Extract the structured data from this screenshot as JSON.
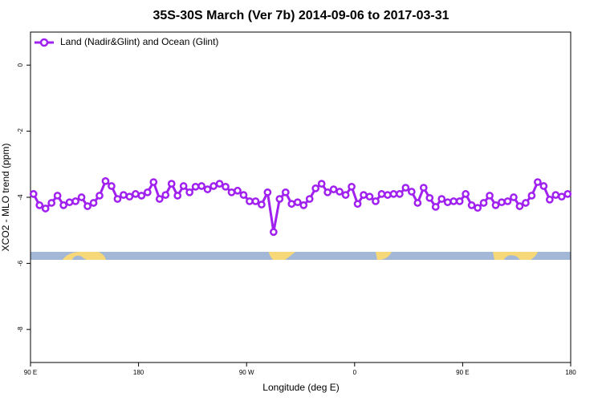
{
  "chart_data": {
    "type": "line",
    "title": "35S-30S March (Ver 7b)   2014-09-06 to 2017-03-31",
    "xlabel": "Longitude (deg E)",
    "ylabel": "XCO2 - MLO trend (ppm)",
    "legend": "topleft",
    "xlim": [
      90,
      540
    ],
    "ylim": [
      -9,
      1
    ],
    "xticks": [
      {
        "value": 90,
        "label": "90 E"
      },
      {
        "value": 180,
        "label": "180"
      },
      {
        "value": 270,
        "label": "90 W"
      },
      {
        "value": 360,
        "label": "0"
      },
      {
        "value": 450,
        "label": "90 E"
      },
      {
        "value": 540,
        "label": "180"
      }
    ],
    "yticks": [
      0,
      -2,
      -4,
      -6,
      -8
    ],
    "x": [
      92.5,
      97.5,
      102.5,
      107.5,
      112.5,
      117.5,
      122.5,
      127.5,
      132.5,
      137.5,
      142.5,
      147.5,
      152.5,
      157.5,
      162.5,
      167.5,
      172.5,
      177.5,
      182.5,
      187.5,
      192.5,
      197.5,
      202.5,
      207.5,
      212.5,
      217.5,
      222.5,
      227.5,
      232.5,
      237.5,
      242.5,
      247.5,
      252.5,
      257.5,
      262.5,
      267.5,
      272.5,
      277.5,
      282.5,
      287.5,
      292.5,
      297.5,
      302.5,
      307.5,
      312.5,
      317.5,
      322.5,
      327.5,
      332.5,
      337.5,
      342.5,
      347.5,
      352.5,
      357.5,
      362.5,
      367.5,
      372.5,
      377.5,
      382.5,
      387.5,
      392.5,
      397.5,
      402.5,
      407.5,
      412.5,
      417.5,
      422.5,
      427.5,
      432.5,
      437.5,
      442.5,
      447.5,
      452.5,
      457.5,
      462.5,
      467.5,
      472.5,
      477.5,
      482.5,
      487.5,
      492.5,
      497.5,
      502.5,
      507.5,
      512.5,
      517.5,
      522.5,
      527.5,
      532.5,
      537.5
    ],
    "series": [
      {
        "name": "Land (Nadir&Glint) and Ocean (Glint)",
        "color": "#a020f0",
        "values": [
          -3.9,
          -4.24,
          -4.34,
          -4.17,
          -3.95,
          -4.24,
          -4.15,
          -4.12,
          -4.0,
          -4.27,
          -4.17,
          -3.95,
          -3.51,
          -3.66,
          -4.05,
          -3.93,
          -3.98,
          -3.9,
          -3.95,
          -3.85,
          -3.54,
          -4.05,
          -3.93,
          -3.59,
          -3.95,
          -3.66,
          -3.85,
          -3.68,
          -3.66,
          -3.76,
          -3.66,
          -3.59,
          -3.68,
          -3.85,
          -3.8,
          -3.93,
          -4.12,
          -4.12,
          -4.22,
          -3.85,
          -5.05,
          -4.05,
          -3.85,
          -4.2,
          -4.15,
          -4.24,
          -4.05,
          -3.73,
          -3.59,
          -3.85,
          -3.76,
          -3.83,
          -3.93,
          -3.68,
          -4.2,
          -3.93,
          -3.98,
          -4.12,
          -3.9,
          -3.93,
          -3.9,
          -3.9,
          -3.71,
          -3.83,
          -4.17,
          -3.71,
          -4.02,
          -4.29,
          -4.05,
          -4.15,
          -4.12,
          -4.12,
          -3.9,
          -4.24,
          -4.32,
          -4.17,
          -3.95,
          -4.24,
          -4.15,
          -4.12,
          -4.0,
          -4.27,
          -4.17,
          -3.95,
          -3.54,
          -3.66,
          -4.07,
          -3.93,
          -3.98,
          -3.9
        ]
      }
    ]
  }
}
